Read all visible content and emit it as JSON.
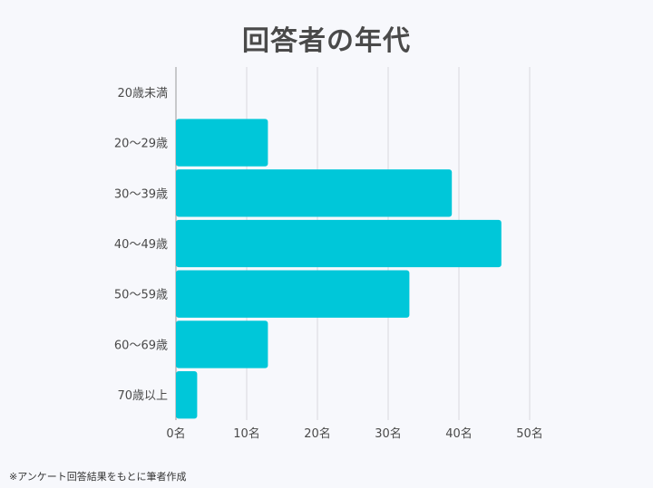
{
  "title": "回答者の年代",
  "footnote": "※アンケート回答結果をもとに筆者作成",
  "chart_data": {
    "type": "bar",
    "orientation": "horizontal",
    "title": "回答者の年代",
    "xlabel": "",
    "ylabel": "",
    "categories": [
      "20歳未満",
      "20〜29歳",
      "30〜39歳",
      "40〜49歳",
      "50〜59歳",
      "60〜69歳",
      "70歳以上"
    ],
    "values": [
      0,
      13,
      39,
      46,
      33,
      13,
      3
    ],
    "xlim": [
      0,
      50
    ],
    "xticks": [
      0,
      10,
      20,
      30,
      40,
      50
    ],
    "xtick_labels": [
      "0名",
      "10名",
      "20名",
      "30名",
      "40名",
      "50名"
    ],
    "bar_color": "#00c7d9",
    "grid": true,
    "legend": "none"
  }
}
